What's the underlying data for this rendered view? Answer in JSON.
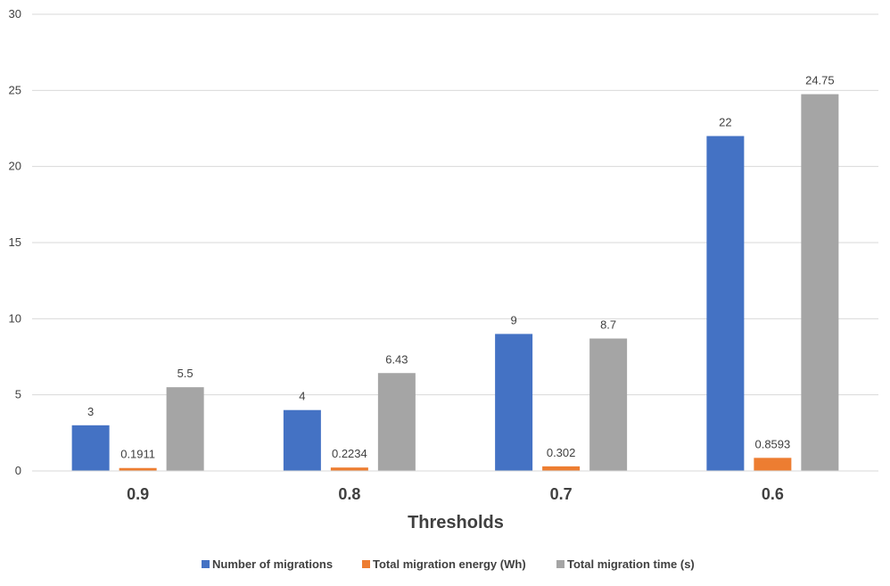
{
  "chart_data": {
    "type": "bar",
    "categories": [
      "0.9",
      "0.8",
      "0.7",
      "0.6"
    ],
    "series": [
      {
        "name": "Number of migrations",
        "values": [
          3,
          4,
          9,
          22
        ],
        "color": "#4472c4"
      },
      {
        "name": "Total migration energy (Wh)",
        "values": [
          0.1911,
          0.2234,
          0.302,
          0.8593
        ],
        "color": "#ed7d31"
      },
      {
        "name": "Total migration time (s)",
        "values": [
          5.5,
          6.43,
          8.7,
          24.75
        ],
        "color": "#a5a5a5"
      }
    ],
    "data_labels": [
      [
        "3",
        "4",
        "9",
        "22"
      ],
      [
        "0.1911",
        "0.2234",
        "0.302",
        "0.8593"
      ],
      [
        "5.5",
        "6.43",
        "8.7",
        "24.75"
      ]
    ],
    "title": "",
    "xlabel": "Thresholds",
    "ylabel": "",
    "ylim": [
      0,
      30
    ],
    "yticks": [
      0,
      5,
      10,
      15,
      20,
      25,
      30
    ],
    "grid": true,
    "legend_position": "bottom"
  }
}
